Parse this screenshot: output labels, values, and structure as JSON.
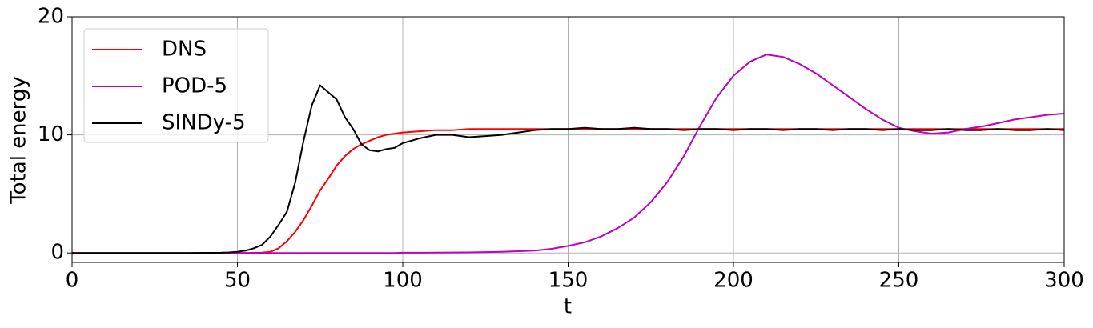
{
  "chart_data": {
    "type": "line",
    "xlabel": "t",
    "ylabel": "Total energy",
    "x": [
      0,
      5,
      10,
      15,
      20,
      25,
      30,
      35,
      40,
      42.5,
      45,
      47.5,
      50,
      52.5,
      55,
      57.5,
      60,
      62.5,
      65,
      67.5,
      70,
      72.5,
      75,
      77.5,
      80,
      82.5,
      85,
      87.5,
      90,
      92.5,
      95,
      97.5,
      100,
      105,
      110,
      115,
      120,
      125,
      130,
      135,
      140,
      145,
      150,
      155,
      160,
      165,
      170,
      175,
      180,
      185,
      190,
      195,
      200,
      205,
      210,
      215,
      220,
      225,
      230,
      235,
      240,
      245,
      250,
      255,
      260,
      265,
      270,
      275,
      280,
      285,
      290,
      295,
      300
    ],
    "series": [
      {
        "name": "DNS",
        "color": "#ff0000",
        "values": [
          0,
          0,
          0,
          0,
          0,
          0,
          0,
          0,
          0,
          0,
          0,
          0,
          0,
          0,
          0.01,
          0.03,
          0.1,
          0.4,
          1.0,
          1.8,
          2.8,
          4.0,
          5.3,
          6.3,
          7.4,
          8.2,
          8.8,
          9.2,
          9.5,
          9.8,
          10.0,
          10.1,
          10.2,
          10.3,
          10.4,
          10.4,
          10.5,
          10.5,
          10.5,
          10.5,
          10.5,
          10.5,
          10.5,
          10.5,
          10.5,
          10.5,
          10.5,
          10.5,
          10.5,
          10.5,
          10.5,
          10.5,
          10.5,
          10.5,
          10.5,
          10.5,
          10.5,
          10.5,
          10.5,
          10.5,
          10.5,
          10.5,
          10.5,
          10.5,
          10.5,
          10.5,
          10.5,
          10.5,
          10.5,
          10.5,
          10.5,
          10.5,
          10.5
        ]
      },
      {
        "name": "POD-5",
        "color": "#c000c0",
        "values": [
          0,
          0,
          0,
          0,
          0,
          0,
          0,
          0,
          0,
          0,
          0,
          0,
          0,
          0,
          0,
          0,
          0,
          0,
          0,
          0,
          0,
          0,
          0,
          0,
          0,
          0,
          0,
          0,
          0,
          0,
          0,
          0,
          0.02,
          0.02,
          0.03,
          0.04,
          0.05,
          0.07,
          0.1,
          0.15,
          0.2,
          0.35,
          0.6,
          0.9,
          1.4,
          2.1,
          3.0,
          4.3,
          6.0,
          8.2,
          10.8,
          13.2,
          15.0,
          16.2,
          16.8,
          16.6,
          16.0,
          15.2,
          14.2,
          13.2,
          12.2,
          11.3,
          10.6,
          10.3,
          10.1,
          10.2,
          10.5,
          10.7,
          11.0,
          11.3,
          11.5,
          11.7,
          11.8
        ]
      },
      {
        "name": "SINDy-5",
        "color": "#000000",
        "values": [
          0,
          0,
          0,
          0,
          0,
          0,
          0,
          0,
          0.01,
          0.01,
          0.02,
          0.05,
          0.1,
          0.2,
          0.4,
          0.7,
          1.4,
          2.4,
          3.5,
          6,
          9.5,
          12.5,
          14.2,
          13.6,
          13,
          11.5,
          10.5,
          9.2,
          8.7,
          8.6,
          8.8,
          8.9,
          9.3,
          9.7,
          10.0,
          10.0,
          9.8,
          9.9,
          10.0,
          10.2,
          10.4,
          10.5,
          10.5,
          10.6,
          10.5,
          10.5,
          10.6,
          10.5,
          10.5,
          10.4,
          10.5,
          10.5,
          10.4,
          10.5,
          10.5,
          10.4,
          10.5,
          10.5,
          10.4,
          10.5,
          10.5,
          10.4,
          10.5,
          10.4,
          10.4,
          10.5,
          10.4,
          10.4,
          10.5,
          10.4,
          10.4,
          10.5,
          10.4
        ]
      }
    ],
    "xlim": [
      0,
      300
    ],
    "ylim": [
      -0.8,
      20
    ],
    "xticks": [
      0,
      50,
      100,
      150,
      200,
      250,
      300
    ],
    "yticks": [
      0,
      10,
      20
    ],
    "grid": true,
    "legend": "upper left"
  }
}
